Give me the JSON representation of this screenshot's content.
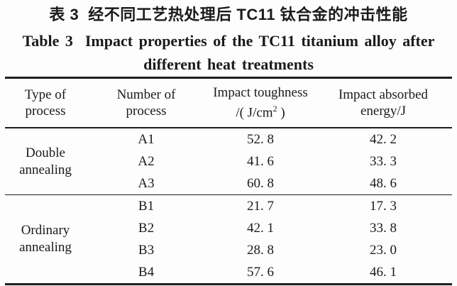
{
  "caption": {
    "zh": {
      "label": "表 3",
      "text": "经不同工艺热处理后 TC11 钛合金的冲击性能"
    },
    "en": {
      "label": "Table 3",
      "line1": "Impact properties of the TC11 titanium alloy after",
      "line2": "different heat treatments"
    }
  },
  "table": {
    "columns": [
      {
        "line1": "Type of",
        "line2": "process"
      },
      {
        "line1": "Number of",
        "line2": "process"
      },
      {
        "line1": "Impact toughness",
        "line2_prefix": "/( J/cm",
        "line2_sup": "2",
        "line2_suffix": " )"
      },
      {
        "line1": "Impact absorbed",
        "line2": "energy/J"
      }
    ],
    "groups": [
      {
        "type": {
          "line1": "Double",
          "line2": "annealing"
        },
        "rows": [
          {
            "number": "A1",
            "toughness": "52. 8",
            "energy": "42. 2"
          },
          {
            "number": "A2",
            "toughness": "41. 6",
            "energy": "33. 3"
          },
          {
            "number": "A3",
            "toughness": "60. 8",
            "energy": "48. 6"
          }
        ]
      },
      {
        "type": {
          "line1": "Ordinary",
          "line2": "annealing"
        },
        "rows": [
          {
            "number": "B1",
            "toughness": "21. 7",
            "energy": "17. 3"
          },
          {
            "number": "B2",
            "toughness": "42. 1",
            "energy": "33. 8"
          },
          {
            "number": "B3",
            "toughness": "28. 8",
            "energy": "23. 0"
          },
          {
            "number": "B4",
            "toughness": "57. 6",
            "energy": "46. 1"
          }
        ]
      }
    ]
  },
  "colors": {
    "text": "#1b1b1b",
    "background": "#fdfdfd",
    "rule": "#1e1e1e"
  }
}
